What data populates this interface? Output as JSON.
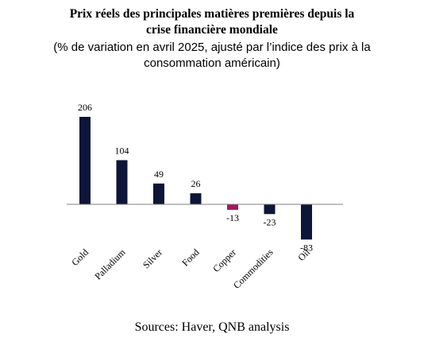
{
  "title_line1": "Prix réels des principales matières premières depuis la",
  "title_line2": "crise financière mondiale",
  "subtitle_line1": "(% de variation en avril 2025, ajusté par l’indice des prix à la",
  "subtitle_line2": "consommation américain)",
  "source": "Sources: Haver, QNB analysis",
  "colors": {
    "default": "#0d1538",
    "highlight": "#a4185e"
  },
  "chart_data": {
    "type": "bar",
    "title": "Prix réels des principales matières premières depuis la crise financière mondiale",
    "subtitle": "(% de variation en avril 2025, ajusté par l’indice des prix à la consommation américain)",
    "categories": [
      "Gold",
      "Palladium",
      "Silver",
      "Food",
      "Copper",
      "Commodities",
      "Oil"
    ],
    "values": [
      206,
      104,
      49,
      26,
      -13,
      -23,
      -83
    ],
    "highlight": [
      "Copper"
    ],
    "data_labels": [
      "206",
      "104",
      "49",
      "26",
      "-13",
      "-23",
      "-83"
    ],
    "xlabel": "",
    "ylabel": "",
    "grid": false,
    "legend": "none"
  }
}
